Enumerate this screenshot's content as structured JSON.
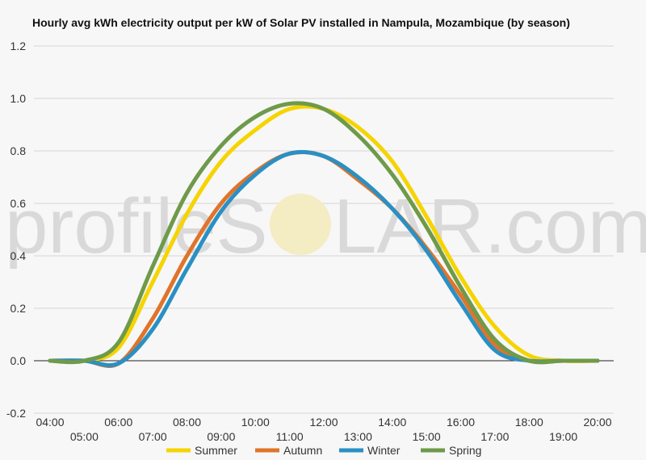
{
  "watermark": {
    "text_left": "profileS",
    "text_right": "LAR.com"
  },
  "chart_data": {
    "type": "line",
    "title": "Hourly avg kWh electricity output per kW of Solar PV installed in Nampula, Mozambique (by season)",
    "xlabel": "",
    "ylabel": "",
    "x": [
      4,
      5,
      6,
      7,
      8,
      9,
      10,
      11,
      12,
      13,
      14,
      15,
      16,
      17,
      18,
      19,
      20
    ],
    "x_tick_labels": [
      "04:00",
      "05:00",
      "06:00",
      "07:00",
      "08:00",
      "09:00",
      "10:00",
      "11:00",
      "12:00",
      "13:00",
      "14:00",
      "15:00",
      "16:00",
      "17:00",
      "18:00",
      "19:00",
      "20:00"
    ],
    "ylim": [
      -0.2,
      1.2
    ],
    "y_ticks": [
      -0.2,
      0.0,
      0.2,
      0.4,
      0.6,
      0.8,
      1.0,
      1.2
    ],
    "grid": true,
    "legend_position": "bottom",
    "series": [
      {
        "name": "Summer",
        "color": "#f5d400",
        "values": [
          0.0,
          0.0,
          0.05,
          0.3,
          0.56,
          0.76,
          0.88,
          0.96,
          0.96,
          0.89,
          0.76,
          0.55,
          0.32,
          0.13,
          0.02,
          0.0,
          0.0
        ]
      },
      {
        "name": "Autumn",
        "color": "#e0742a",
        "values": [
          0.0,
          0.0,
          -0.01,
          0.16,
          0.4,
          0.6,
          0.72,
          0.79,
          0.78,
          0.69,
          0.58,
          0.43,
          0.25,
          0.06,
          0.0,
          0.0,
          0.0
        ]
      },
      {
        "name": "Winter",
        "color": "#2a90c4",
        "values": [
          0.0,
          0.0,
          -0.01,
          0.12,
          0.35,
          0.57,
          0.71,
          0.79,
          0.78,
          0.7,
          0.58,
          0.42,
          0.22,
          0.04,
          0.0,
          0.0,
          0.0
        ]
      },
      {
        "name": "Spring",
        "color": "#6e9a4a",
        "values": [
          0.0,
          0.0,
          0.07,
          0.36,
          0.64,
          0.82,
          0.93,
          0.98,
          0.96,
          0.86,
          0.71,
          0.51,
          0.28,
          0.08,
          0.0,
          0.0,
          0.0
        ]
      }
    ]
  }
}
